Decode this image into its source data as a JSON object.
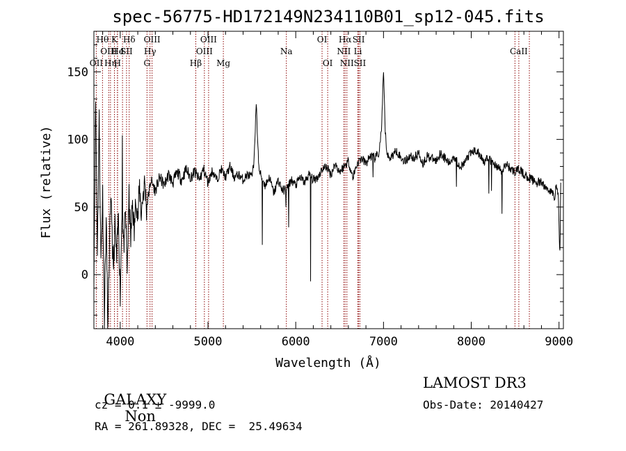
{
  "chart_data": {
    "type": "line",
    "title": "spec-56775-HD172149N234110B01_sp12-045.fits",
    "xlabel": "Wavelength (Å)",
    "ylabel": "Flux (relative)",
    "xlim": [
      3700,
      9050
    ],
    "ylim": [
      -40,
      180
    ],
    "xticks": [
      4000,
      5000,
      6000,
      7000,
      8000,
      9000
    ],
    "yticks": [
      0,
      50,
      100,
      150
    ],
    "x_minor_step": 200,
    "y_minor_step": 10,
    "line_color": "#000000",
    "marker_color": "#8b0000",
    "lines": [
      {
        "name": "OII",
        "wl": 3727,
        "row": 2
      },
      {
        "name": "Hθ",
        "wl": 3798,
        "row": 0
      },
      {
        "name": "OIII",
        "wl": 3869,
        "row": 1
      },
      {
        "name": "Hη",
        "wl": 3889,
        "row": 2
      },
      {
        "name": "He",
        "wl": 3970,
        "row": 1
      },
      {
        "name": "K",
        "wl": 3934,
        "row": 0
      },
      {
        "name": "H",
        "wl": 3968,
        "row": 2
      },
      {
        "name": "I",
        "wl": 4026,
        "row": 1
      },
      {
        "name": "Hδ",
        "wl": 4102,
        "row": 0
      },
      {
        "name": "SII",
        "wl": 4072,
        "row": 1
      },
      {
        "name": "G",
        "wl": 4305,
        "row": 2
      },
      {
        "name": "Hγ",
        "wl": 4340,
        "row": 1
      },
      {
        "name": "OIII",
        "wl": 4363,
        "row": 0
      },
      {
        "name": "Hβ",
        "wl": 4861,
        "row": 2
      },
      {
        "name": "OIII",
        "wl": 4959,
        "row": 1
      },
      {
        "name": "OIII",
        "wl": 5007,
        "row": 0
      },
      {
        "name": "Mg",
        "wl": 5175,
        "row": 2
      },
      {
        "name": "Na",
        "wl": 5893,
        "row": 1
      },
      {
        "name": "OI",
        "wl": 6300,
        "row": 0
      },
      {
        "name": "OI",
        "wl": 6364,
        "row": 2
      },
      {
        "name": "NII",
        "wl": 6548,
        "row": 1
      },
      {
        "name": "Hα",
        "wl": 6563,
        "row": 0
      },
      {
        "name": "NII",
        "wl": 6583,
        "row": 2
      },
      {
        "name": "SII",
        "wl": 6717,
        "row": 0
      },
      {
        "name": "Li",
        "wl": 6708,
        "row": 1
      },
      {
        "name": "SII",
        "wl": 6731,
        "row": 2
      },
      {
        "name": "CaII",
        "wl": 8542,
        "row": 1
      }
    ],
    "markers": [
      3727,
      3798,
      3869,
      3889,
      3934,
      3968,
      3970,
      4026,
      4072,
      4102,
      4305,
      4340,
      4363,
      4861,
      4959,
      5007,
      5175,
      5893,
      6300,
      6364,
      6548,
      6563,
      6583,
      6708,
      6717,
      6731,
      8498,
      8542,
      8662
    ],
    "series": [
      {
        "name": "flux",
        "anchors": [
          [
            3700,
            0
          ],
          [
            3720,
            130
          ],
          [
            3740,
            20
          ],
          [
            3760,
            115
          ],
          [
            3780,
            10
          ],
          [
            3800,
            60
          ],
          [
            3820,
            -30
          ],
          [
            3840,
            40
          ],
          [
            3860,
            -40
          ],
          [
            3880,
            30
          ],
          [
            3900,
            55
          ],
          [
            3920,
            0
          ],
          [
            3940,
            35
          ],
          [
            3960,
            10
          ],
          [
            3980,
            45
          ],
          [
            4000,
            -15
          ],
          [
            4020,
            50
          ],
          [
            4040,
            20
          ],
          [
            4060,
            45
          ],
          [
            4080,
            5
          ],
          [
            4100,
            58
          ],
          [
            4120,
            25
          ],
          [
            4140,
            55
          ],
          [
            4160,
            30
          ],
          [
            4180,
            60
          ],
          [
            4200,
            40
          ],
          [
            4220,
            65
          ],
          [
            4240,
            45
          ],
          [
            4260,
            60
          ],
          [
            4280,
            68
          ],
          [
            4300,
            50
          ],
          [
            4350,
            70
          ],
          [
            4400,
            62
          ],
          [
            4450,
            72
          ],
          [
            4500,
            66
          ],
          [
            4550,
            74
          ],
          [
            4600,
            68
          ],
          [
            4650,
            76
          ],
          [
            4700,
            70
          ],
          [
            4750,
            78
          ],
          [
            4800,
            72
          ],
          [
            4850,
            76
          ],
          [
            4900,
            70
          ],
          [
            4950,
            78
          ],
          [
            5000,
            68
          ],
          [
            5050,
            77
          ],
          [
            5100,
            70
          ],
          [
            5150,
            78
          ],
          [
            5200,
            72
          ],
          [
            5250,
            80
          ],
          [
            5300,
            72
          ],
          [
            5350,
            74
          ],
          [
            5400,
            70
          ],
          [
            5450,
            74
          ],
          [
            5500,
            72
          ],
          [
            5520,
            80
          ],
          [
            5550,
            126
          ],
          [
            5580,
            78
          ],
          [
            5600,
            74
          ],
          [
            5650,
            66
          ],
          [
            5700,
            72
          ],
          [
            5750,
            60
          ],
          [
            5800,
            70
          ],
          [
            5850,
            62
          ],
          [
            5900,
            64
          ],
          [
            5950,
            70
          ],
          [
            6000,
            66
          ],
          [
            6050,
            72
          ],
          [
            6100,
            68
          ],
          [
            6150,
            74
          ],
          [
            6200,
            70
          ],
          [
            6250,
            72
          ],
          [
            6300,
            78
          ],
          [
            6350,
            80
          ],
          [
            6400,
            74
          ],
          [
            6450,
            82
          ],
          [
            6500,
            76
          ],
          [
            6550,
            80
          ],
          [
            6600,
            84
          ],
          [
            6650,
            72
          ],
          [
            6700,
            82
          ],
          [
            6750,
            86
          ],
          [
            6800,
            82
          ],
          [
            6850,
            88
          ],
          [
            6900,
            86
          ],
          [
            6950,
            90
          ],
          [
            6980,
            110
          ],
          [
            7000,
            150
          ],
          [
            7020,
            105
          ],
          [
            7040,
            90
          ],
          [
            7060,
            86
          ],
          [
            7100,
            88
          ],
          [
            7150,
            92
          ],
          [
            7200,
            86
          ],
          [
            7250,
            84
          ],
          [
            7300,
            88
          ],
          [
            7350,
            86
          ],
          [
            7400,
            90
          ],
          [
            7450,
            82
          ],
          [
            7500,
            88
          ],
          [
            7550,
            86
          ],
          [
            7600,
            84
          ],
          [
            7650,
            90
          ],
          [
            7700,
            86
          ],
          [
            7750,
            82
          ],
          [
            7800,
            88
          ],
          [
            7850,
            82
          ],
          [
            7900,
            80
          ],
          [
            7950,
            86
          ],
          [
            8000,
            90
          ],
          [
            8050,
            92
          ],
          [
            8100,
            88
          ],
          [
            8150,
            84
          ],
          [
            8200,
            86
          ],
          [
            8250,
            82
          ],
          [
            8300,
            80
          ],
          [
            8350,
            76
          ],
          [
            8400,
            82
          ],
          [
            8450,
            78
          ],
          [
            8500,
            76
          ],
          [
            8550,
            78
          ],
          [
            8600,
            74
          ],
          [
            8650,
            72
          ],
          [
            8700,
            70
          ],
          [
            8750,
            68
          ],
          [
            8800,
            68
          ],
          [
            8850,
            64
          ],
          [
            8900,
            62
          ],
          [
            8950,
            58
          ],
          [
            8970,
            66
          ],
          [
            8990,
            60
          ],
          [
            9000,
            35
          ],
          [
            9010,
            15
          ],
          [
            9020,
            68
          ]
        ],
        "spikes": [
          [
            3855,
            -45
          ],
          [
            4025,
            103
          ],
          [
            4300,
            40
          ],
          [
            4650,
            76
          ],
          [
            5550,
            126
          ],
          [
            5620,
            22
          ],
          [
            5890,
            50
          ],
          [
            5920,
            35
          ],
          [
            6170,
            -5
          ],
          [
            6880,
            72
          ],
          [
            7830,
            65
          ],
          [
            8200,
            60
          ],
          [
            8350,
            45
          ],
          [
            8230,
            62
          ]
        ]
      }
    ]
  },
  "info": {
    "left_line1_type": "GALAXY",
    "left_line1_sub": "Non",
    "cz_line": "cz = 0.1 ± -9999.0",
    "radec_line": "RA = 261.89328, DEC =  25.49634",
    "right_line1": "LAMOST DR3",
    "obs_date": "Obs-Date: 20140427"
  }
}
